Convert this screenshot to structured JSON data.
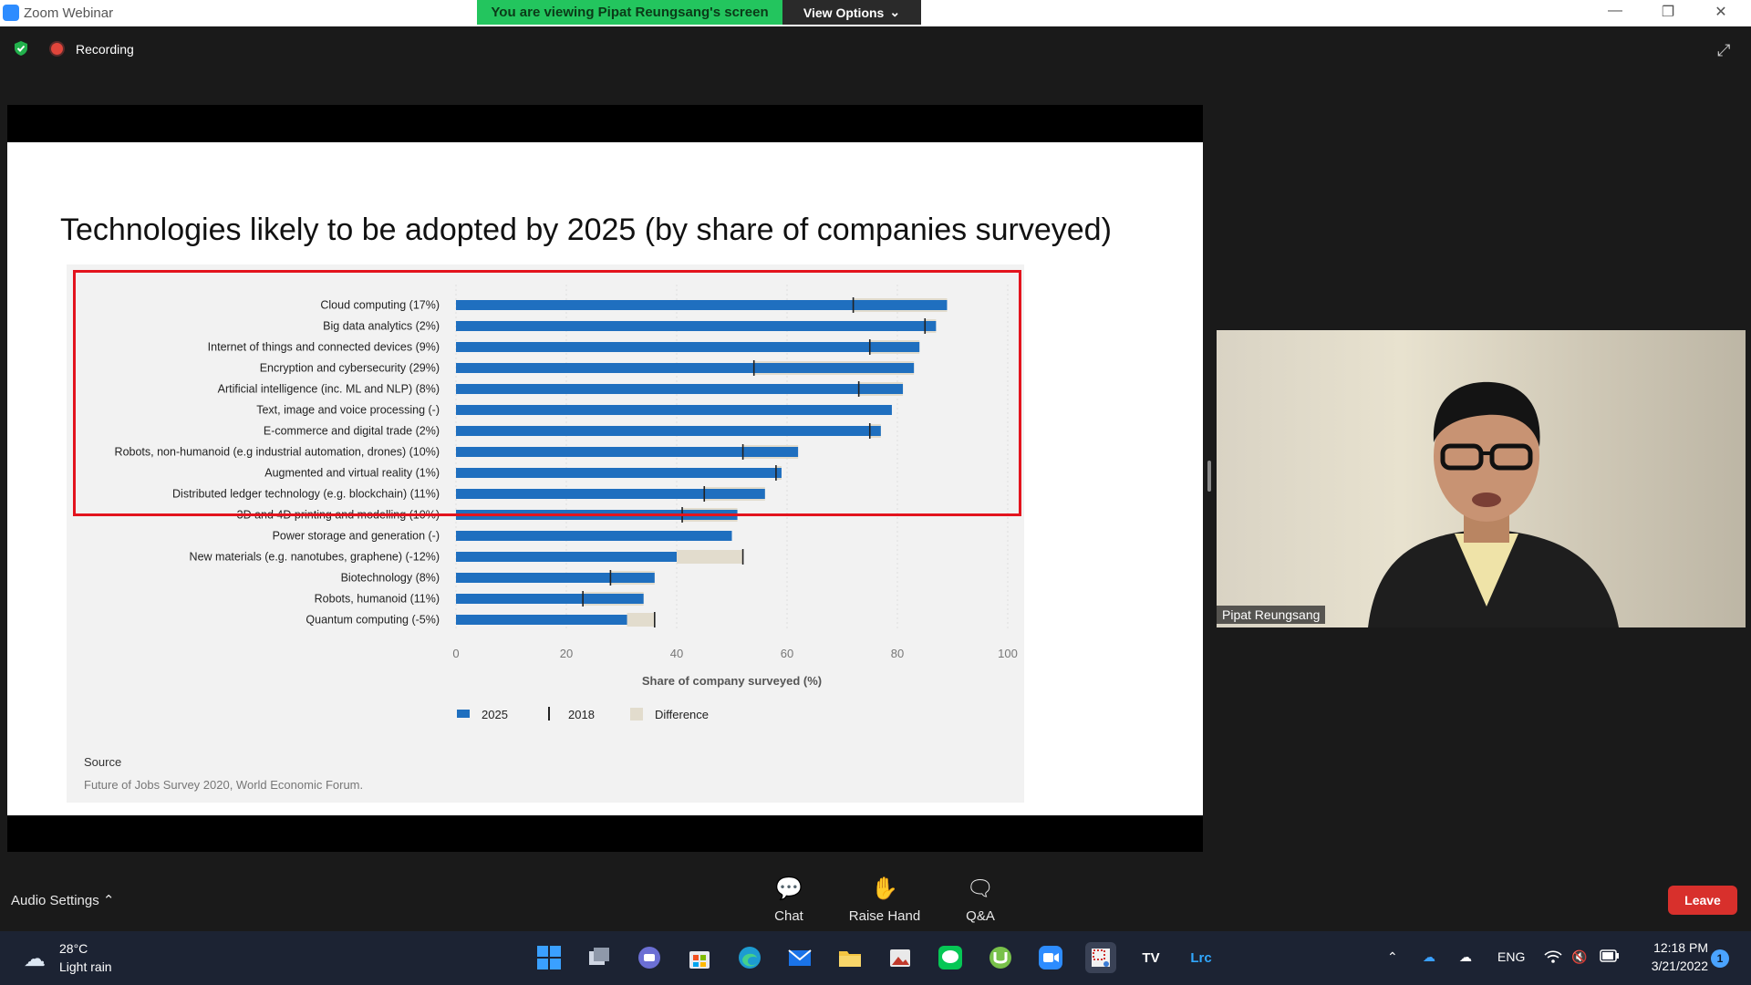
{
  "window": {
    "app_title": "Zoom Webinar",
    "viewing_banner": "You are viewing Pipat Reungsang's screen",
    "view_options": "View Options"
  },
  "status": {
    "recording_label": "Recording"
  },
  "slide": {
    "title": "Technologies likely to be adopted by 2025 (by share of companies surveyed)",
    "source_label": "Source",
    "source_text": "Future of Jobs Survey 2020, World Economic Forum."
  },
  "chart_data": {
    "type": "bar",
    "orientation": "horizontal",
    "categories": [
      "Cloud computing (17%)",
      "Big data analytics (2%)",
      "Internet of things and connected devices (9%)",
      "Encryption and cybersecurity (29%)",
      "Artificial intelligence (inc. ML and NLP) (8%)",
      "Text, image and voice processing (-)",
      "E-commerce and digital trade (2%)",
      "Robots, non-humanoid (e.g industrial automation, drones) (10%)",
      "Augmented and virtual reality (1%)",
      "Distributed ledger technology (e.g. blockchain) (11%)",
      "3D and 4D printing and modelling (10%)",
      "Power storage and generation (-)",
      "New materials (e.g. nanotubes, graphene) (-12%)",
      "Biotechnology (8%)",
      "Robots, humanoid (11%)",
      "Quantum computing (-5%)"
    ],
    "series": [
      {
        "name": "2025",
        "color": "#1f6fbf",
        "values": [
          89,
          87,
          84,
          83,
          81,
          79,
          77,
          62,
          59,
          56,
          51,
          50,
          40,
          36,
          34,
          31
        ]
      },
      {
        "name": "2018",
        "color": "#222222",
        "values": [
          72,
          85,
          75,
          54,
          73,
          null,
          75,
          52,
          58,
          45,
          41,
          null,
          52,
          28,
          23,
          36
        ]
      }
    ],
    "difference_color": "#e2dccd",
    "x_ticks": [
      "0",
      "20",
      "40",
      "60",
      "80",
      "100"
    ],
    "xlim": [
      0,
      100
    ],
    "xlabel": "Share of company surveyed (%)",
    "legend": [
      {
        "label": "2025",
        "type": "bar"
      },
      {
        "label": "2018",
        "type": "tick"
      },
      {
        "label": "Difference",
        "type": "fill"
      }
    ],
    "legend_position": "bottom"
  },
  "video": {
    "name": "Pipat Reungsang"
  },
  "toolbar": {
    "audio_settings": "Audio Settings",
    "chat": "Chat",
    "raise_hand": "Raise Hand",
    "qa": "Q&A",
    "leave": "Leave"
  },
  "taskbar": {
    "weather_temp": "28°C",
    "weather_desc": "Light rain",
    "apps": [
      "windows-start",
      "task-view",
      "teams-chat",
      "microsoft-store",
      "edge",
      "mail",
      "file-explorer",
      "photos",
      "line",
      "utorrent",
      "zoom",
      "snipping-tool",
      "tradingview",
      "lightroom-classic"
    ],
    "tradingview_label": "TV",
    "lightroom_label": "Lrc",
    "lang": "ENG",
    "time": "12:18 PM",
    "date": "3/21/2022",
    "notifications": "1"
  }
}
